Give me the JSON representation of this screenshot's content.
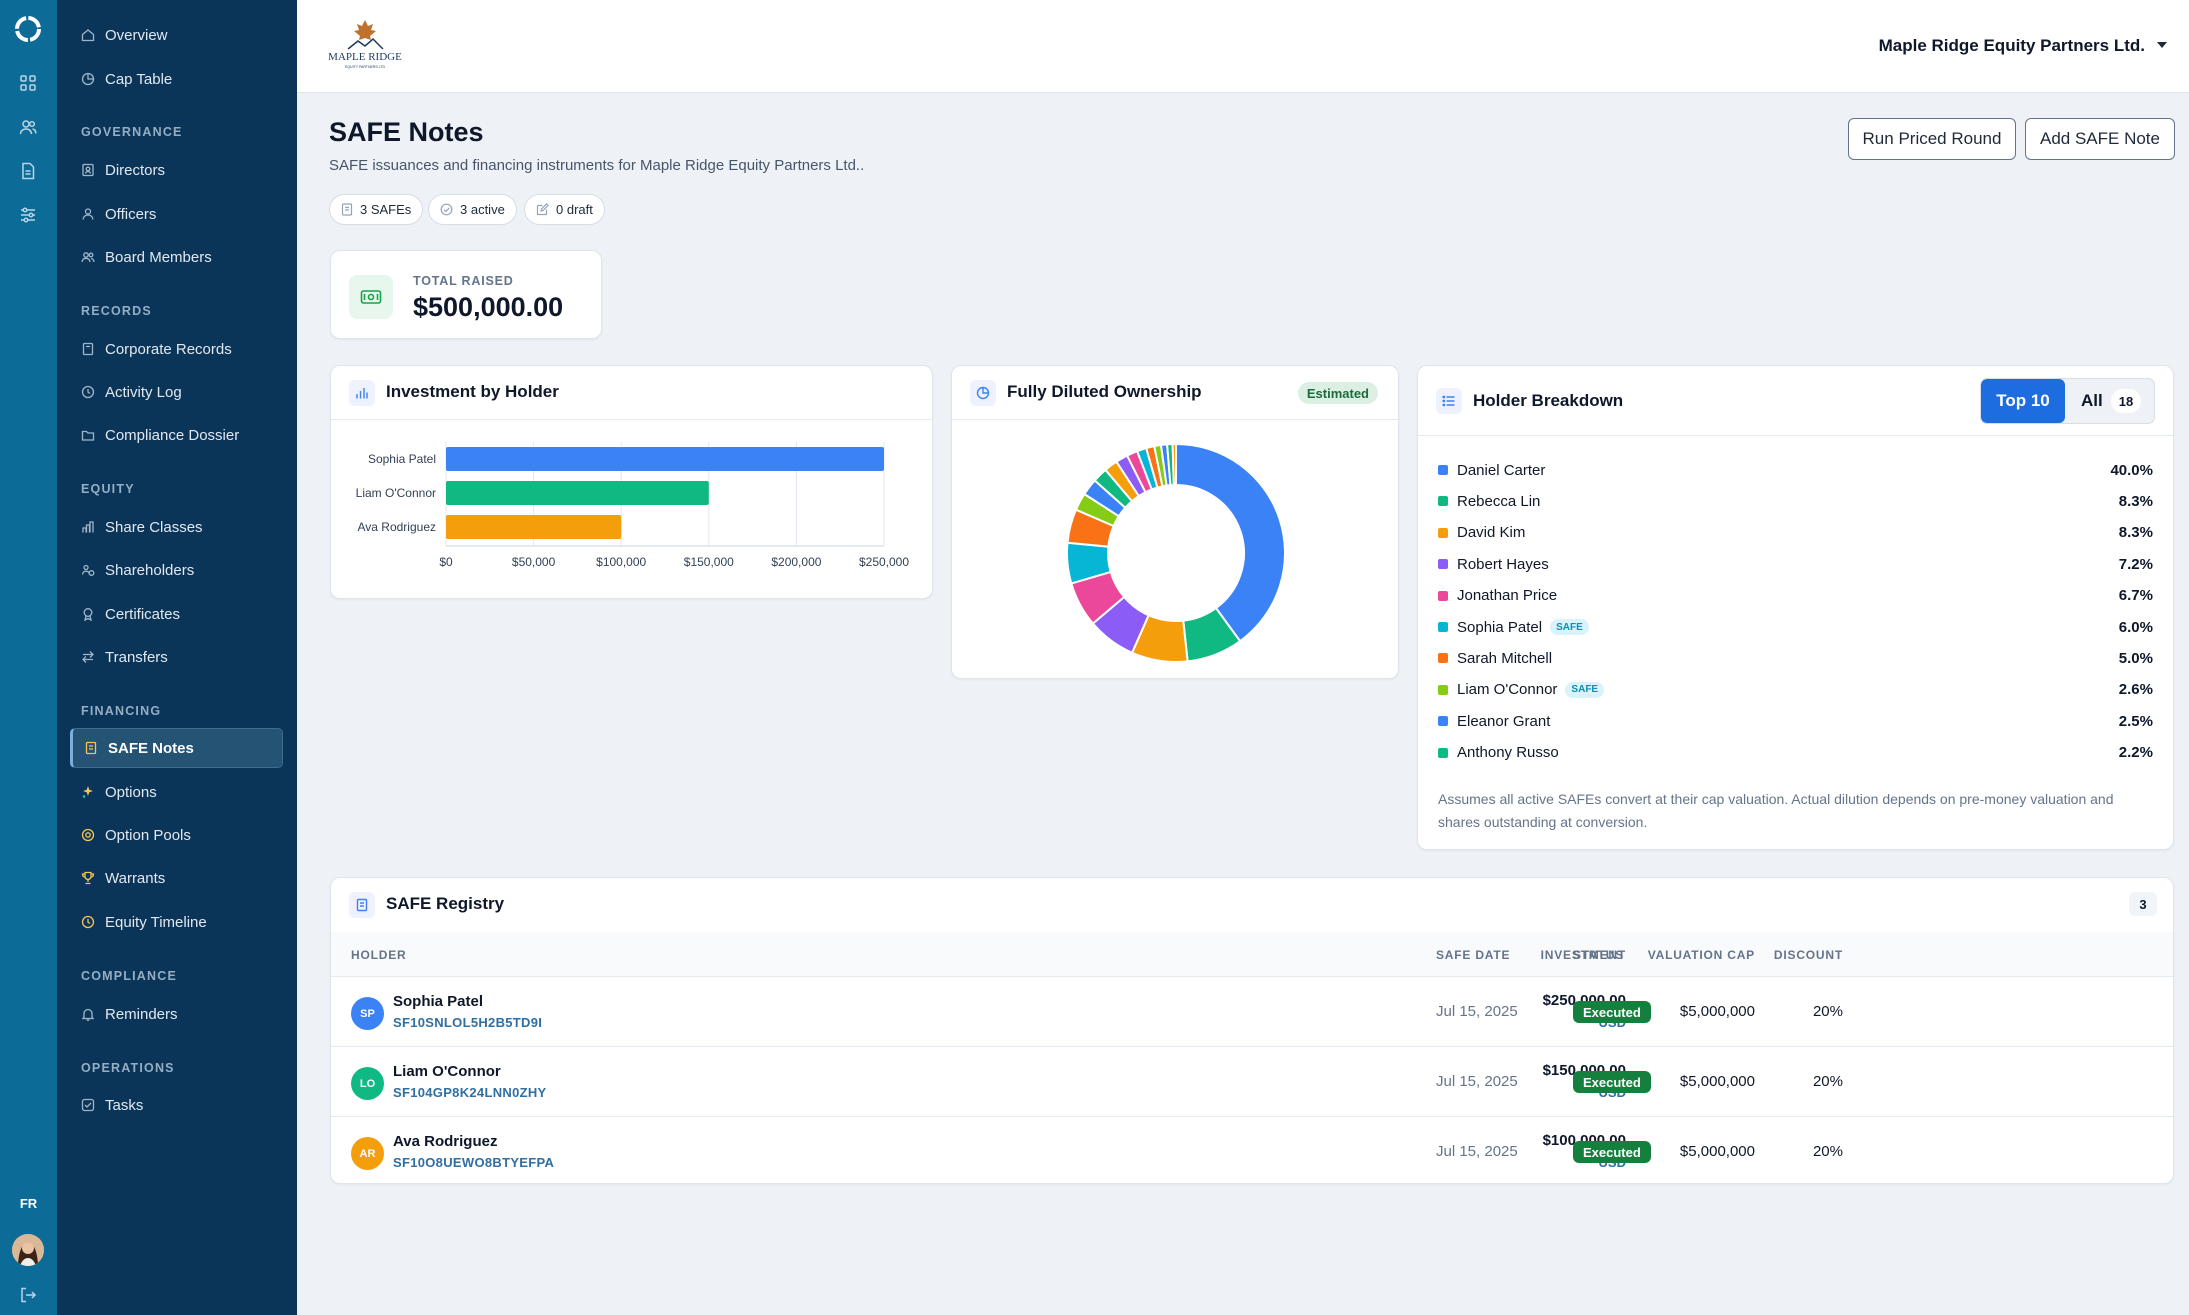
{
  "rail": {
    "lang": "FR"
  },
  "sidebar": {
    "items_top": [
      {
        "label": "Overview",
        "icon": "home-icon"
      },
      {
        "label": "Cap Table",
        "icon": "pie-chart-icon"
      }
    ],
    "sections": [
      {
        "title": "GOVERNANCE",
        "items": [
          {
            "label": "Directors",
            "icon": "user-badge-icon"
          },
          {
            "label": "Officers",
            "icon": "user-icon"
          },
          {
            "label": "Board Members",
            "icon": "users-icon"
          }
        ]
      },
      {
        "title": "RECORDS",
        "items": [
          {
            "label": "Corporate Records",
            "icon": "book-icon"
          },
          {
            "label": "Activity Log",
            "icon": "clock-icon"
          },
          {
            "label": "Compliance Dossier",
            "icon": "folder-icon"
          }
        ]
      },
      {
        "title": "EQUITY",
        "items": [
          {
            "label": "Share Classes",
            "icon": "layers-icon"
          },
          {
            "label": "Shareholders",
            "icon": "people-icon"
          },
          {
            "label": "Certificates",
            "icon": "award-icon"
          },
          {
            "label": "Transfers",
            "icon": "transfer-icon"
          }
        ]
      },
      {
        "title": "FINANCING",
        "items": [
          {
            "label": "SAFE Notes",
            "icon": "document-icon",
            "active": true
          },
          {
            "label": "Options",
            "icon": "sparkle-icon"
          },
          {
            "label": "Option Pools",
            "icon": "pool-icon"
          },
          {
            "label": "Warrants",
            "icon": "trophy-icon"
          },
          {
            "label": "Equity Timeline",
            "icon": "timeline-icon"
          }
        ]
      },
      {
        "title": "COMPLIANCE",
        "items": [
          {
            "label": "Reminders",
            "icon": "bell-icon"
          }
        ]
      },
      {
        "title": "OPERATIONS",
        "items": [
          {
            "label": "Tasks",
            "icon": "checkbox-icon"
          }
        ]
      }
    ]
  },
  "topbar": {
    "logo_text": "MAPLE RIDGE",
    "logo_subtext": "EQUITY PARTNERS LTD",
    "org_name": "Maple Ridge Equity Partners Ltd."
  },
  "page": {
    "title": "SAFE Notes",
    "subtitle": "SAFE issuances and financing instruments for Maple Ridge Equity Partners Ltd..",
    "pills": [
      "3 SAFEs",
      "3 active",
      "0 draft"
    ],
    "buttons": {
      "run": "Run Priced Round",
      "add": "Add SAFE Note"
    }
  },
  "raised": {
    "label": "TOTAL RAISED",
    "value": "$500,000.00"
  },
  "investment_chart": {
    "title": "Investment by Holder",
    "chart_data": {
      "type": "bar",
      "orientation": "horizontal",
      "categories": [
        "Sophia Patel",
        "Liam O'Connor",
        "Ava Rodriguez"
      ],
      "values": [
        250000,
        150000,
        100000
      ],
      "colors": [
        "#3b82f6",
        "#10b981",
        "#f59e0b"
      ],
      "xlim": [
        0,
        250000
      ],
      "xticks": [
        "$0",
        "$50,000",
        "$100,000",
        "$150,000",
        "$200,000",
        "$250,000"
      ],
      "grid": true
    }
  },
  "ownership_chart": {
    "title": "Fully Diluted Ownership",
    "badge": "Estimated",
    "chart_data": {
      "type": "pie",
      "style": "donut",
      "values": [
        40.0,
        8.3,
        8.3,
        7.2,
        6.7,
        6.0,
        5.0,
        2.6,
        2.5,
        2.2,
        2.0,
        1.8,
        1.6,
        1.4,
        1.2,
        1.0,
        0.9,
        0.8,
        0.5
      ],
      "colors": [
        "#3b82f6",
        "#10b981",
        "#f59e0b",
        "#8b5cf6",
        "#ec4899",
        "#06b6d4",
        "#f97316",
        "#84cc16",
        "#3b82f6",
        "#10b981",
        "#f59e0b",
        "#8b5cf6",
        "#ec4899",
        "#06b6d4",
        "#f97316",
        "#84cc16",
        "#3b82f6",
        "#10b981",
        "#f59e0b"
      ]
    }
  },
  "breakdown": {
    "title": "Holder Breakdown",
    "toggle": {
      "top": "Top 10",
      "all": "All",
      "all_count": "18"
    },
    "safe_tag": "SAFE",
    "rows": [
      {
        "name": "Daniel Carter",
        "pct": "40.0%",
        "color": "#3b82f6"
      },
      {
        "name": "Rebecca Lin",
        "pct": "8.3%",
        "color": "#10b981"
      },
      {
        "name": "David Kim",
        "pct": "8.3%",
        "color": "#f59e0b"
      },
      {
        "name": "Robert Hayes",
        "pct": "7.2%",
        "color": "#8b5cf6"
      },
      {
        "name": "Jonathan Price",
        "pct": "6.7%",
        "color": "#ec4899"
      },
      {
        "name": "Sophia Patel",
        "pct": "6.0%",
        "color": "#06b6d4",
        "safe": true
      },
      {
        "name": "Sarah Mitchell",
        "pct": "5.0%",
        "color": "#f97316"
      },
      {
        "name": "Liam O'Connor",
        "pct": "2.6%",
        "color": "#84cc16",
        "safe": true
      },
      {
        "name": "Eleanor Grant",
        "pct": "2.5%",
        "color": "#3b82f6"
      },
      {
        "name": "Anthony Russo",
        "pct": "2.2%",
        "color": "#10b981"
      }
    ],
    "note": "Assumes all active SAFEs convert at their cap valuation. Actual dilution depends on pre-money valuation and shares outstanding at conversion."
  },
  "registry": {
    "title": "SAFE Registry",
    "count": "3",
    "headers": {
      "holder": "HOLDER",
      "investment": "INVESTMENT",
      "cap": "VALUATION CAP",
      "discount": "DISCOUNT",
      "date": "SAFE DATE",
      "status": "STATUS"
    },
    "rows": [
      {
        "initials": "SP",
        "name": "Sophia Patel",
        "id": "SF10SNLOL5H2B5TD9I",
        "investment": "$250,000.00",
        "currency": "USD",
        "cap": "$5,000,000",
        "discount": "20%",
        "date": "Jul 15, 2025",
        "status": "Executed",
        "color": "#3b82f6"
      },
      {
        "initials": "LO",
        "name": "Liam O'Connor",
        "id": "SF104GP8K24LNN0ZHY",
        "investment": "$150,000.00",
        "currency": "USD",
        "cap": "$5,000,000",
        "discount": "20%",
        "date": "Jul 15, 2025",
        "status": "Executed",
        "color": "#10b981"
      },
      {
        "initials": "AR",
        "name": "Ava Rodriguez",
        "id": "SF10O8UEWO8BTYEFPA",
        "investment": "$100,000.00",
        "currency": "USD",
        "cap": "$5,000,000",
        "discount": "20%",
        "date": "Jul 15, 2025",
        "status": "Executed",
        "color": "#f59e0b"
      }
    ]
  }
}
